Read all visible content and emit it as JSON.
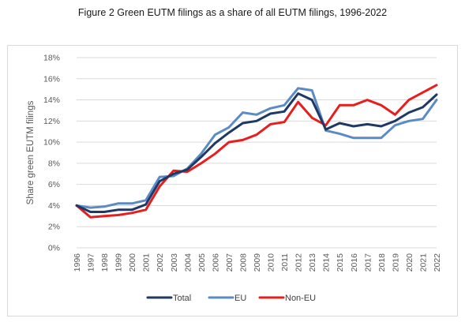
{
  "figure_title": "Figure 2 Green EUTM filings as a share of all EUTM filings, 1996-2022",
  "chart_data": {
    "type": "line",
    "title": "Figure 2 Green EUTM filings as a share of all EUTM filings, 1996-2022",
    "xlabel": "",
    "ylabel": "Share green EUTM filings",
    "ylim": [
      0,
      18
    ],
    "y_ticks": [
      "0%",
      "2%",
      "4%",
      "6%",
      "8%",
      "10%",
      "12%",
      "14%",
      "16%",
      "18%"
    ],
    "y_tick_values": [
      0,
      2,
      4,
      6,
      8,
      10,
      12,
      14,
      16,
      18
    ],
    "y_unit": "%",
    "grid": "horizontal",
    "legend_position": "bottom",
    "x": [
      "1996",
      "1997",
      "1998",
      "1999",
      "2000",
      "2001",
      "2002",
      "2003",
      "2004",
      "2005",
      "2006",
      "2007",
      "2008",
      "2009",
      "2010",
      "2011",
      "2012",
      "2013",
      "2014",
      "2015",
      "2016",
      "2017",
      "2018",
      "2019",
      "2020",
      "2021",
      "2022"
    ],
    "series": [
      {
        "name": "Total",
        "color": "#1f3864",
        "values": [
          4.0,
          3.4,
          3.4,
          3.6,
          3.6,
          4.1,
          6.3,
          7.0,
          7.4,
          8.6,
          9.9,
          10.9,
          11.8,
          12.0,
          12.7,
          12.9,
          14.6,
          14.0,
          11.2,
          11.8,
          11.5,
          11.7,
          11.5,
          12.0,
          12.8,
          13.3,
          14.5
        ]
      },
      {
        "name": "EU",
        "color": "#5b8bc4",
        "values": [
          4.0,
          3.8,
          3.9,
          4.2,
          4.2,
          4.5,
          6.7,
          6.8,
          7.5,
          8.9,
          10.7,
          11.4,
          12.8,
          12.6,
          13.2,
          13.5,
          15.1,
          14.9,
          11.1,
          10.8,
          10.4,
          10.4,
          10.4,
          11.6,
          12.0,
          12.2,
          14.0
        ]
      },
      {
        "name": "Non-EU",
        "color": "#e81e1e",
        "values": [
          4.0,
          2.9,
          3.0,
          3.1,
          3.3,
          3.6,
          5.8,
          7.3,
          7.2,
          8.0,
          8.9,
          10.0,
          10.2,
          10.7,
          11.7,
          11.9,
          13.8,
          12.3,
          11.6,
          13.5,
          13.5,
          14.0,
          13.5,
          12.6,
          14.0,
          14.7,
          15.4
        ]
      }
    ]
  }
}
